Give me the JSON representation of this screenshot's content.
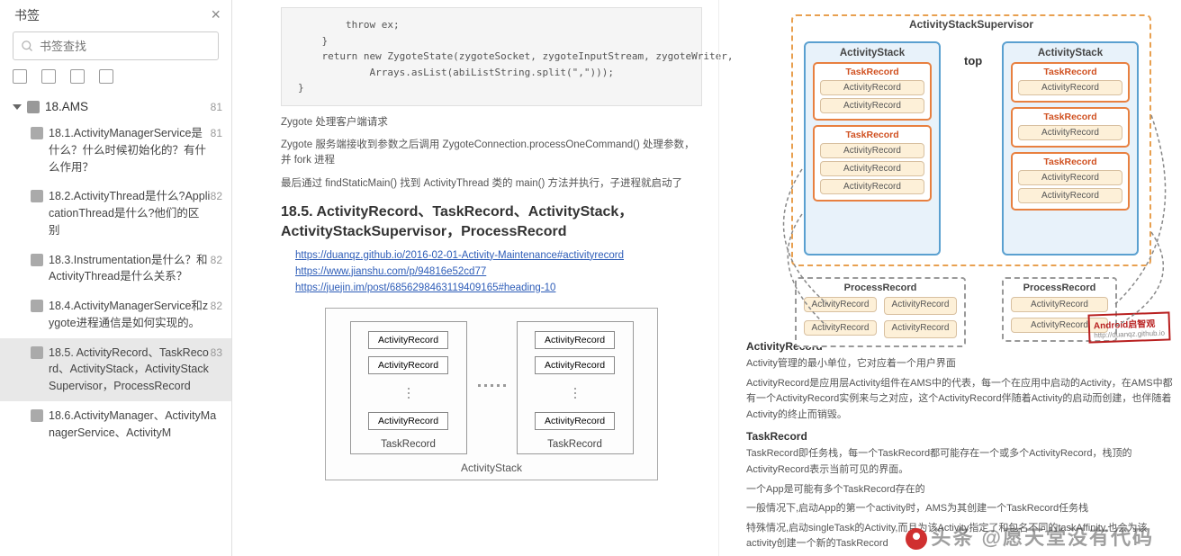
{
  "sidebar": {
    "title": "书签",
    "search_placeholder": "书签查找",
    "root": {
      "label": "18.AMS",
      "page": "81"
    },
    "items": [
      {
        "label": "18.1.ActivityManagerService是什么？什么时候初始化的？有什么作用？",
        "page": "81"
      },
      {
        "label": "18.2.ActivityThread是什么?ApplicationThread是什么?他们的区别",
        "page": "82"
      },
      {
        "label": "18.3.Instrumentation是什么？和ActivityThread是什么关系？",
        "page": "82"
      },
      {
        "label": "18.4.ActivityManagerService和zygote进程通信是如何实现的。",
        "page": "82"
      },
      {
        "label": "18.5. ActivityRecord、TaskRecord、ActivityStack，ActivityStackSupervisor，ProcessRecord",
        "page": "83"
      },
      {
        "label": "18.6.ActivityManager、ActivityManagerService、ActivityM",
        "page": ""
      }
    ],
    "selected_index": 4
  },
  "code": "        throw ex;\n    }\n    return new ZygoteState(zygoteSocket, zygoteInputStream, zygoteWriter,\n            Arrays.asList(abiListString.split(\",\")));\n}",
  "paras": [
    "Zygote 处理客户端请求",
    "Zygote 服务端接收到参数之后调用 ZygoteConnection.processOneCommand() 处理参数，并 fork 进程",
    "最后通过 findStaticMain() 找到 ActivityThread 类的 main() 方法并执行，子进程就启动了"
  ],
  "section_title": "18.5. ActivityRecord、TaskRecord、ActivityStack，ActivityStackSupervisor，ProcessRecord",
  "links": [
    "https://duanqz.github.io/2016-02-01-Activity-Maintenance#activityrecord",
    "https://www.jianshu.com/p/94816e52cd77",
    "https://juejin.im/post/6856298463119409165#heading-10"
  ],
  "diagram": {
    "record": "ActivityRecord",
    "task": "TaskRecord",
    "stack": "ActivityStack"
  },
  "rdiag": {
    "super": "ActivityStackSupervisor",
    "stack": "ActivityStack",
    "top": "top",
    "task": "TaskRecord",
    "ar": "ActivityRecord",
    "proc": "ProcessRecord"
  },
  "watermark_brand": "Android启智观",
  "watermark_url": "http://duanqz.github.io",
  "rtext": {
    "h1": "ActivityRecord",
    "p1": "Activity管理的最小单位，它对应着一个用户界面",
    "p2": "ActivityRecord是应用层Activity组件在AMS中的代表，每一个在应用中启动的Activity，在AMS中都有一个ActivityRecord实例来与之对应，这个ActivityRecord伴随着Activity的启动而创建，也伴随着Activity的终止而销毁。",
    "h2": "TaskRecord",
    "p3": "TaskRecord即任务栈，每一个TaskRecord都可能存在一个或多个ActivityRecord，栈顶的ActivityRecord表示当前可见的界面。",
    "p4": "一个App是可能有多个TaskRecord存在的",
    "p5": "一般情况下,启动App的第一个activity时，AMS为其创建一个TaskRecord任务栈",
    "p6": "特殊情况,启动singleTask的Activity,而且为该Activity指定了和包名不同的taskAffinity,也会为该activity创建一个新的TaskRecord"
  },
  "bottom_watermark": "头条 @愿天堂没有代码"
}
